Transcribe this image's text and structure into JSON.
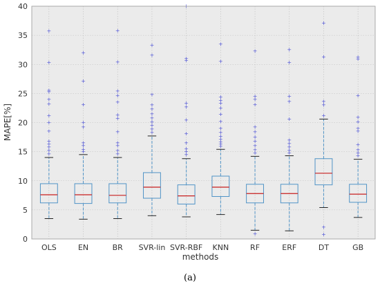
{
  "chart_data": {
    "type": "box",
    "xlabel": "methods",
    "ylabel": "MAPE[%]",
    "caption": "(a)",
    "ylim": [
      0,
      40
    ],
    "yticks": [
      0,
      5,
      10,
      15,
      20,
      25,
      30,
      35,
      40
    ],
    "grid": true,
    "categories": [
      "OLS",
      "EN",
      "BR",
      "SVR-lin",
      "SVR-RBF",
      "KNN",
      "RF",
      "ERF",
      "DT",
      "GB"
    ],
    "boxes": [
      {
        "name": "OLS",
        "whisker_low": 3.5,
        "q1": 6.2,
        "median": 7.6,
        "q3": 9.5,
        "whisker_high": 14.0,
        "outliers": [
          14.6,
          15.2,
          15.8,
          16.3,
          16.8,
          18.5,
          20.0,
          21.2,
          23.2,
          24.0,
          25.3,
          25.5,
          30.3,
          35.7
        ]
      },
      {
        "name": "EN",
        "whisker_low": 3.4,
        "q1": 6.1,
        "median": 7.6,
        "q3": 9.5,
        "whisker_high": 14.5,
        "outliers": [
          15.0,
          15.4,
          16.0,
          16.5,
          19.2,
          20.0,
          23.1,
          27.1,
          32.0
        ]
      },
      {
        "name": "BR",
        "whisker_low": 3.5,
        "q1": 6.2,
        "median": 7.5,
        "q3": 9.5,
        "whisker_high": 14.0,
        "outliers": [
          14.6,
          15.2,
          16.0,
          16.5,
          18.4,
          20.7,
          21.3,
          23.5,
          24.6,
          25.4,
          30.4,
          35.8
        ]
      },
      {
        "name": "SVR-lin",
        "whisker_low": 4.0,
        "q1": 7.0,
        "median": 8.9,
        "q3": 11.4,
        "whisker_high": 17.7,
        "outliers": [
          18.3,
          18.9,
          19.5,
          20.1,
          20.8,
          21.5,
          22.3,
          23.0,
          24.8,
          31.6,
          33.3
        ]
      },
      {
        "name": "SVR-RBF",
        "whisker_low": 3.8,
        "q1": 6.0,
        "median": 7.4,
        "q3": 9.3,
        "whisker_high": 13.8,
        "outliers": [
          14.5,
          15.0,
          15.5,
          16.5,
          18.1,
          20.4,
          22.7,
          23.3,
          30.7,
          31.0,
          40.0
        ]
      },
      {
        "name": "KNN",
        "whisker_low": 4.2,
        "q1": 7.3,
        "median": 8.9,
        "q3": 10.8,
        "whisker_high": 15.4,
        "outliers": [
          15.9,
          16.3,
          16.7,
          17.1,
          17.6,
          18.3,
          19.0,
          20.2,
          21.4,
          22.5,
          23.3,
          23.8,
          24.4,
          30.5,
          33.5
        ]
      },
      {
        "name": "RF",
        "whisker_low": 1.5,
        "q1": 6.2,
        "median": 7.8,
        "q3": 9.4,
        "whisker_high": 14.2,
        "outliers": [
          0.9,
          14.8,
          15.3,
          16.0,
          16.8,
          17.5,
          18.4,
          19.2,
          23.1,
          24.0,
          24.5,
          32.3
        ]
      },
      {
        "name": "ERF",
        "whisker_low": 1.4,
        "q1": 6.2,
        "median": 7.8,
        "q3": 9.4,
        "whisker_high": 14.3,
        "outliers": [
          14.8,
          15.2,
          15.8,
          16.4,
          17.0,
          20.6,
          23.6,
          24.5,
          30.3,
          32.5
        ]
      },
      {
        "name": "DT",
        "whisker_low": 5.4,
        "q1": 9.3,
        "median": 11.3,
        "q3": 13.8,
        "whisker_high": 20.6,
        "outliers": [
          0.8,
          2.0,
          21.2,
          23.0,
          23.6,
          31.3,
          37.1
        ]
      },
      {
        "name": "GB",
        "whisker_low": 3.7,
        "q1": 6.3,
        "median": 7.7,
        "q3": 9.4,
        "whisker_high": 13.7,
        "outliers": [
          14.3,
          14.8,
          15.3,
          16.2,
          18.5,
          19.0,
          20.1,
          20.9,
          24.6,
          30.9,
          31.2
        ]
      }
    ],
    "colors": {
      "plot_background": "#ebebeb",
      "grid": "#bdbdbd",
      "box": "#4a4a4a",
      "median": "#c81e1e",
      "whisker": "#4f93c6",
      "outlier": "#4d52d6"
    }
  }
}
